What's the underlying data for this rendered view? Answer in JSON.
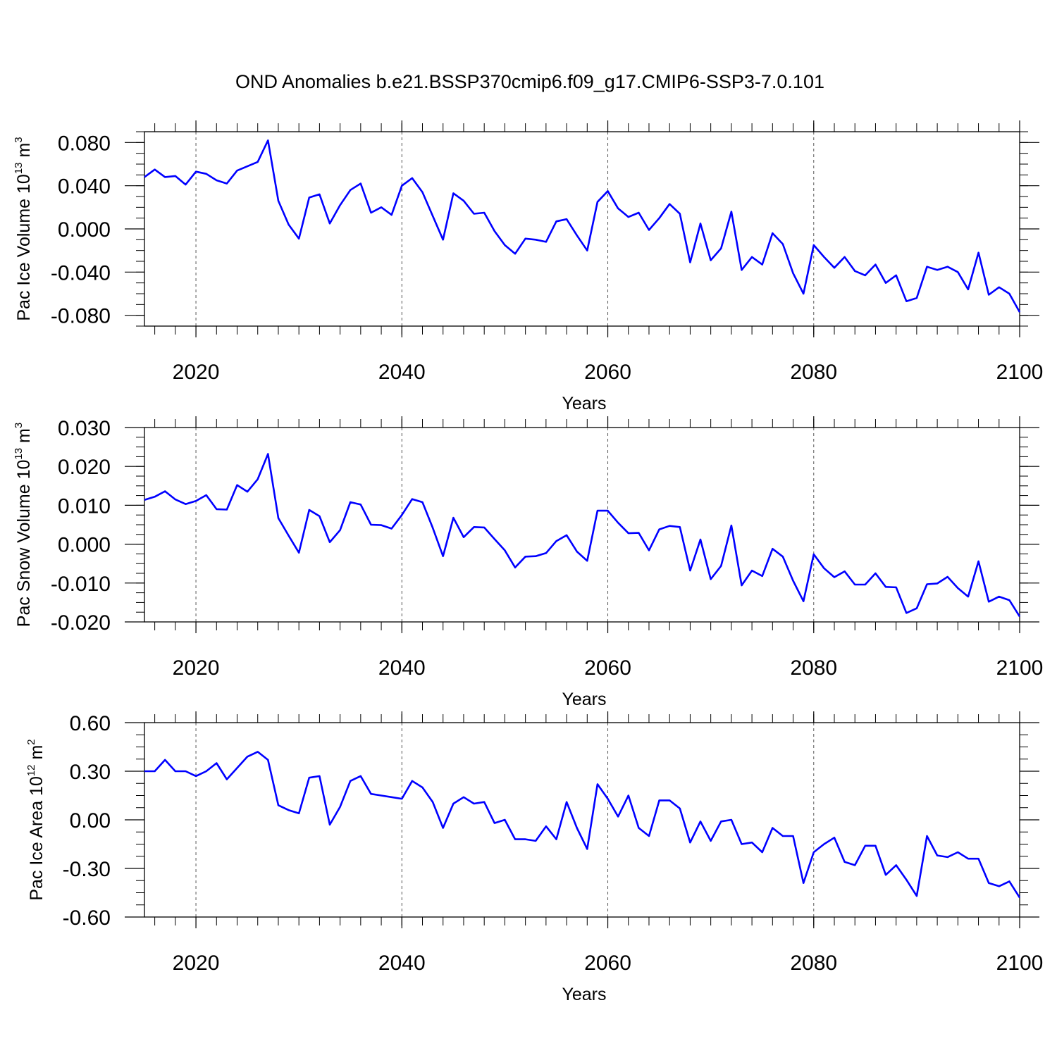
{
  "chart_data": {
    "title": "OND Anomalies b.e21.BSSP370cmip6.f09_g17.CMIP6-SSP3-7.0.101",
    "line_color": "#0000ff",
    "x_years": [
      2015,
      2016,
      2017,
      2018,
      2019,
      2020,
      2021,
      2022,
      2023,
      2024,
      2025,
      2026,
      2027,
      2028,
      2029,
      2030,
      2031,
      2032,
      2033,
      2034,
      2035,
      2036,
      2037,
      2038,
      2039,
      2040,
      2041,
      2042,
      2043,
      2044,
      2045,
      2046,
      2047,
      2048,
      2049,
      2050,
      2051,
      2052,
      2053,
      2054,
      2055,
      2056,
      2057,
      2058,
      2059,
      2060,
      2061,
      2062,
      2063,
      2064,
      2065,
      2066,
      2067,
      2068,
      2069,
      2070,
      2071,
      2072,
      2073,
      2074,
      2075,
      2076,
      2077,
      2078,
      2079,
      2080,
      2081,
      2082,
      2083,
      2084,
      2085,
      2086,
      2087,
      2088,
      2089,
      2090,
      2091,
      2092,
      2093,
      2094,
      2095,
      2096,
      2097,
      2098,
      2099,
      2100
    ],
    "panels": [
      {
        "type": "line",
        "xlabel": "Years",
        "ylabel": "Pac Ice Volume 10",
        "ylabel_exp": "13",
        "ylabel_unit": " m",
        "ylabel_unit_exp": "3",
        "xlim": [
          2015,
          2100
        ],
        "ylim": [
          -0.09,
          0.09
        ],
        "xticks": [
          "2020",
          "2040",
          "2060",
          "2080",
          "2100"
        ],
        "yticks": [
          "0.080",
          "0.040",
          "0.000",
          "-0.040",
          "-0.080"
        ],
        "ytick_values": [
          0.08,
          0.04,
          0.0,
          -0.04,
          -0.08
        ],
        "values": [
          0.048,
          0.055,
          0.048,
          0.049,
          0.041,
          0.053,
          0.051,
          0.045,
          0.042,
          0.054,
          0.058,
          0.062,
          0.082,
          0.026,
          0.004,
          -0.009,
          0.029,
          0.032,
          0.005,
          0.022,
          0.036,
          0.042,
          0.015,
          0.02,
          0.013,
          0.04,
          0.047,
          0.034,
          0.012,
          -0.01,
          0.033,
          0.026,
          0.014,
          0.015,
          -0.002,
          -0.015,
          -0.023,
          -0.009,
          -0.01,
          -0.012,
          0.007,
          0.009,
          -0.006,
          -0.02,
          0.025,
          0.035,
          0.019,
          0.011,
          0.015,
          -0.001,
          0.01,
          0.023,
          0.014,
          -0.031,
          0.005,
          -0.029,
          -0.018,
          0.016,
          -0.038,
          -0.026,
          -0.033,
          -0.004,
          -0.014,
          -0.041,
          -0.06,
          -0.015,
          -0.026,
          -0.036,
          -0.026,
          -0.039,
          -0.043,
          -0.033,
          -0.05,
          -0.043,
          -0.067,
          -0.064,
          -0.035,
          -0.038,
          -0.035,
          -0.04,
          -0.056,
          -0.022,
          -0.061,
          -0.054,
          -0.06,
          -0.077
        ]
      },
      {
        "type": "line",
        "xlabel": "Years",
        "ylabel": "Pac Snow Volume 10",
        "ylabel_exp": "13",
        "ylabel_unit": " m",
        "ylabel_unit_exp": "3",
        "xlim": [
          2015,
          2100
        ],
        "ylim": [
          -0.02,
          0.03
        ],
        "xticks": [
          "2020",
          "2040",
          "2060",
          "2080",
          "2100"
        ],
        "yticks": [
          "0.030",
          "0.020",
          "0.010",
          "0.000",
          "-0.010",
          "-0.020"
        ],
        "ytick_values": [
          0.03,
          0.02,
          0.01,
          0.0,
          -0.01,
          -0.02
        ],
        "values": [
          0.0114,
          0.0122,
          0.0136,
          0.0115,
          0.0103,
          0.0111,
          0.0126,
          0.009,
          0.0089,
          0.0152,
          0.0135,
          0.0167,
          0.0232,
          0.0067,
          0.0022,
          -0.0022,
          0.0088,
          0.0072,
          0.0005,
          0.0036,
          0.0108,
          0.0102,
          0.005,
          0.0049,
          0.004,
          0.0075,
          0.0116,
          0.0108,
          0.0042,
          -0.0031,
          0.0068,
          0.0018,
          0.0044,
          0.0043,
          0.0013,
          -0.0016,
          -0.006,
          -0.0032,
          -0.0031,
          -0.0023,
          0.0008,
          0.0023,
          -0.0019,
          -0.0043,
          0.0086,
          0.0086,
          0.0055,
          0.0028,
          0.0029,
          -0.0016,
          0.0038,
          0.0047,
          0.0044,
          -0.0068,
          0.0012,
          -0.009,
          -0.0056,
          0.0048,
          -0.0106,
          -0.0068,
          -0.0082,
          -0.0012,
          -0.0032,
          -0.0094,
          -0.0147,
          -0.0026,
          -0.0062,
          -0.0085,
          -0.007,
          -0.0104,
          -0.0104,
          -0.0075,
          -0.011,
          -0.0111,
          -0.0177,
          -0.0165,
          -0.0103,
          -0.0101,
          -0.0084,
          -0.0113,
          -0.0135,
          -0.0044,
          -0.0148,
          -0.0135,
          -0.0144,
          -0.0186
        ]
      },
      {
        "type": "line",
        "xlabel": "Years",
        "ylabel": "Pac Ice Area 10",
        "ylabel_exp": "12",
        "ylabel_unit": " m",
        "ylabel_unit_exp": "2",
        "xlim": [
          2015,
          2100
        ],
        "ylim": [
          -0.6,
          0.6
        ],
        "xticks": [
          "2020",
          "2040",
          "2060",
          "2080",
          "2100"
        ],
        "yticks": [
          "0.60",
          "0.30",
          "0.00",
          "-0.30",
          "-0.60"
        ],
        "ytick_values": [
          0.6,
          0.3,
          0.0,
          -0.3,
          -0.6
        ],
        "values": [
          0.3,
          0.3,
          0.37,
          0.3,
          0.3,
          0.27,
          0.3,
          0.35,
          0.25,
          0.32,
          0.39,
          0.42,
          0.37,
          0.09,
          0.06,
          0.04,
          0.26,
          0.27,
          -0.03,
          0.08,
          0.24,
          0.27,
          0.16,
          0.15,
          0.14,
          0.13,
          0.24,
          0.2,
          0.11,
          -0.05,
          0.1,
          0.14,
          0.1,
          0.11,
          -0.02,
          0.0,
          -0.12,
          -0.12,
          -0.13,
          -0.04,
          -0.12,
          0.11,
          -0.05,
          -0.18,
          0.22,
          0.13,
          0.02,
          0.15,
          -0.05,
          -0.1,
          0.12,
          0.12,
          0.07,
          -0.14,
          -0.01,
          -0.13,
          -0.01,
          0.0,
          -0.15,
          -0.14,
          -0.2,
          -0.05,
          -0.1,
          -0.1,
          -0.39,
          -0.2,
          -0.15,
          -0.11,
          -0.26,
          -0.28,
          -0.16,
          -0.16,
          -0.34,
          -0.28,
          -0.37,
          -0.47,
          -0.1,
          -0.22,
          -0.23,
          -0.2,
          -0.24,
          -0.24,
          -0.39,
          -0.41,
          -0.38,
          -0.48
        ]
      }
    ]
  }
}
